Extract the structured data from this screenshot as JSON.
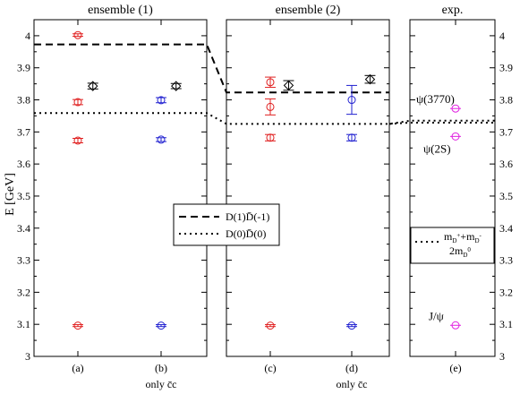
{
  "chart_data": {
    "type": "scatter",
    "ylabel": "E [GeV]",
    "ylim": [
      3.0,
      4.05
    ],
    "yticks": [
      "3",
      "3.1",
      "3.2",
      "3.3",
      "3.4",
      "3.5",
      "3.6",
      "3.7",
      "3.8",
      "3.9",
      "4"
    ],
    "grid": false,
    "panels": [
      {
        "title": "ensemble (1)",
        "categories": [
          {
            "label": "(a)",
            "sublabel": ""
          },
          {
            "label": "(b)",
            "sublabel": "only c̄c"
          }
        ]
      },
      {
        "title": "ensemble (2)",
        "categories": [
          {
            "label": "(c)",
            "sublabel": ""
          },
          {
            "label": "(d)",
            "sublabel": "only c̄c"
          }
        ]
      },
      {
        "title": "exp.",
        "categories": [
          {
            "label": "(e)",
            "sublabel": ""
          }
        ]
      }
    ],
    "points": [
      {
        "category": "(a)",
        "y": 4.002,
        "err": 0.004,
        "color": "#e02020",
        "marker": "circle"
      },
      {
        "category": "(a)",
        "y": 3.793,
        "err": 0.008,
        "color": "#e02020",
        "marker": "circle"
      },
      {
        "category": "(a)",
        "y": 3.673,
        "err": 0.007,
        "color": "#e02020",
        "marker": "circle"
      },
      {
        "category": "(a)",
        "y": 3.096,
        "err": 0.003,
        "color": "#e02020",
        "marker": "circle"
      },
      {
        "category": "(a)",
        "y": 3.843,
        "err": 0.009,
        "color": "#000000",
        "marker": "diamond",
        "offset": 0.18
      },
      {
        "category": "(b)",
        "y": 3.799,
        "err": 0.008,
        "color": "#2020d0",
        "marker": "circle"
      },
      {
        "category": "(b)",
        "y": 3.676,
        "err": 0.006,
        "color": "#2020d0",
        "marker": "circle"
      },
      {
        "category": "(b)",
        "y": 3.096,
        "err": 0.003,
        "color": "#2020d0",
        "marker": "circle"
      },
      {
        "category": "(b)",
        "y": 3.843,
        "err": 0.008,
        "color": "#000000",
        "marker": "diamond",
        "offset": 0.18
      },
      {
        "category": "(c)",
        "y": 3.855,
        "err": 0.016,
        "color": "#e02020",
        "marker": "circle"
      },
      {
        "category": "(c)",
        "y": 3.778,
        "err": 0.025,
        "color": "#e02020",
        "marker": "circle"
      },
      {
        "category": "(c)",
        "y": 3.682,
        "err": 0.01,
        "color": "#e02020",
        "marker": "circle"
      },
      {
        "category": "(c)",
        "y": 3.096,
        "err": 0.003,
        "color": "#e02020",
        "marker": "circle"
      },
      {
        "category": "(c)",
        "y": 3.845,
        "err": 0.015,
        "color": "#000000",
        "marker": "diamond",
        "offset": 0.22
      },
      {
        "category": "(d)",
        "y": 3.8,
        "err": 0.045,
        "color": "#2020d0",
        "marker": "circle"
      },
      {
        "category": "(d)",
        "y": 3.682,
        "err": 0.01,
        "color": "#2020d0",
        "marker": "circle"
      },
      {
        "category": "(d)",
        "y": 3.096,
        "err": 0.003,
        "color": "#2020d0",
        "marker": "circle"
      },
      {
        "category": "(d)",
        "y": 3.864,
        "err": 0.012,
        "color": "#000000",
        "marker": "diamond",
        "offset": 0.22
      },
      {
        "category": "(e)",
        "y": 3.773,
        "err": 0.0,
        "color": "#e020e0",
        "marker": "circle"
      },
      {
        "category": "(e)",
        "y": 3.686,
        "err": 0.0,
        "color": "#e020e0",
        "marker": "circle"
      },
      {
        "category": "(e)",
        "y": 3.097,
        "err": 0.0,
        "color": "#e020e0",
        "marker": "circle"
      }
    ],
    "annotations": [
      {
        "text": "ψ(3770)",
        "category": "(e)",
        "y": 3.773
      },
      {
        "text": "ψ(2S)",
        "category": "(e)",
        "y": 3.686
      },
      {
        "text": "J/ψ",
        "category": "(e)",
        "y": 3.097
      }
    ],
    "thresholds": {
      "dashed": {
        "values": [
          3.973,
          3.823
        ],
        "legend": "D(1)D̄(-1)"
      },
      "dotted": {
        "values": [
          3.759,
          3.725,
          3.735,
          3.729
        ],
        "legend": "D(0)D̄(0)"
      },
      "exp_legend": {
        "line1": "m",
        "line1_sub1": "D",
        "line1_sup1": "+",
        "line1_mid": "+m",
        "line1_sub2": "D",
        "line1_sup2": "-",
        "line2": "2m",
        "line2_sub": "D",
        "line2_sup": "0"
      }
    }
  }
}
